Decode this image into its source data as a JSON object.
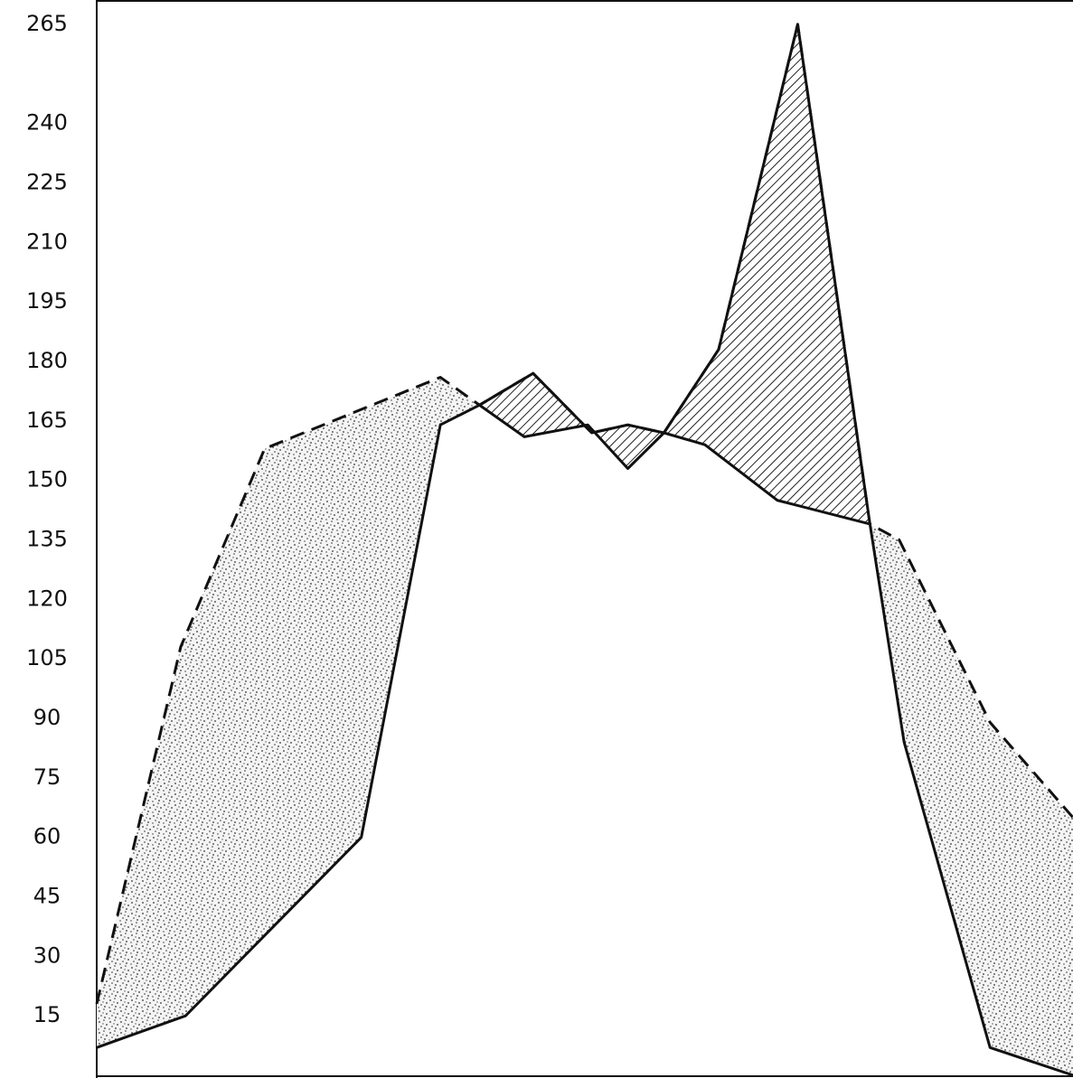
{
  "chart_data": {
    "type": "area-between",
    "ylim": [
      0,
      270
    ],
    "yticks": [
      15,
      30,
      45,
      60,
      75,
      90,
      105,
      120,
      135,
      150,
      165,
      180,
      195,
      210,
      225,
      240,
      265
    ],
    "xlim": [
      0,
      100
    ],
    "series": [
      {
        "color": "#111111",
        "line_style": "dashed",
        "x": [
          0,
          8.6,
          17.2,
          35.2,
          39.2,
          44.7,
          50.7,
          54.4,
          58.1,
          63.7,
          71.8,
          79.2,
          82.2,
          91.5,
          100
        ],
        "values": [
          18,
          108,
          158,
          176,
          169,
          177,
          162,
          164,
          162,
          183,
          265,
          139,
          135,
          89,
          65
        ]
      },
      {
        "color": "#111111",
        "line_style": "solid",
        "x": [
          0,
          9.1,
          27.1,
          35.2,
          39.2,
          43.8,
          50.3,
          54.4,
          58.1,
          62.3,
          69.7,
          79.2,
          82.7,
          91.5,
          100
        ],
        "values": [
          7,
          15,
          60,
          164,
          169,
          161,
          164,
          153,
          162,
          159,
          145,
          139,
          84,
          7,
          0
        ]
      }
    ]
  }
}
